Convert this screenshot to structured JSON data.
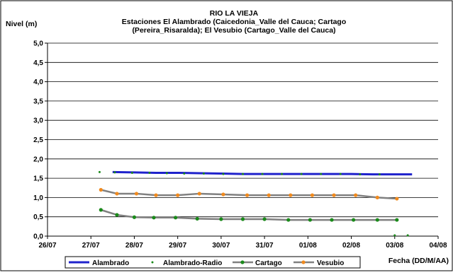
{
  "chart_data": {
    "type": "line",
    "title": [
      "RIO LA VIEJA",
      "Estaciones El Alambrado (Caicedonia_Valle del Cauca; Cartago",
      "(Pereira_Risaralda);  El Vesubio (Cartago_Valle del Cauca)"
    ],
    "ylabel": "Nivel (m)",
    "xlabel": "Fecha (DD/M/AA)",
    "x_ticks": [
      "26/07",
      "27/07",
      "28/07",
      "29/07",
      "30/07",
      "31/07",
      "01/08",
      "02/08",
      "03/08",
      "04/08"
    ],
    "y_ticks": [
      "0,0",
      "0,5",
      "1,0",
      "1,5",
      "2,0",
      "2,5",
      "3,0",
      "3,5",
      "4,0",
      "4,5",
      "5,0"
    ],
    "xlim": [
      0,
      9
    ],
    "ylim": [
      0,
      5
    ],
    "grid": "horizontal",
    "legend_position": "bottom",
    "series": [
      {
        "name": "Alambrado",
        "color": "#1f22cc",
        "style": "thick-line",
        "x": [
          1.5,
          2.0,
          2.5,
          3.0,
          3.5,
          4.0,
          4.5,
          5.0,
          5.5,
          6.0,
          6.5,
          7.0,
          7.5,
          8.0,
          8.4
        ],
        "values": [
          1.66,
          1.65,
          1.64,
          1.64,
          1.63,
          1.62,
          1.61,
          1.61,
          1.61,
          1.61,
          1.61,
          1.61,
          1.6,
          1.6,
          1.6
        ]
      },
      {
        "name": "Alambrado-Radio",
        "color": "#1a8a1a",
        "style": "dots",
        "x": [
          1.2,
          1.55,
          1.95,
          2.35,
          2.75,
          3.15,
          3.6,
          4.05,
          4.5,
          4.95,
          5.4,
          5.85,
          6.3,
          6.75,
          7.2,
          7.65,
          8.0,
          8.3
        ],
        "values": [
          1.66,
          1.65,
          1.64,
          1.64,
          1.63,
          1.62,
          1.62,
          1.61,
          1.61,
          1.61,
          1.61,
          1.61,
          1.61,
          1.61,
          1.6,
          1.6,
          0.02,
          0.02
        ]
      },
      {
        "name": "Cartago",
        "color": "#808080",
        "marker_color": "#1a8a1a",
        "style": "line-markers",
        "x": [
          1.23,
          1.6,
          2.0,
          2.45,
          2.95,
          3.45,
          4.0,
          4.5,
          5.0,
          5.55,
          6.05,
          6.55,
          7.05,
          7.6,
          8.05
        ],
        "values": [
          0.68,
          0.55,
          0.49,
          0.48,
          0.48,
          0.45,
          0.44,
          0.44,
          0.44,
          0.42,
          0.42,
          0.42,
          0.42,
          0.42,
          0.42
        ]
      },
      {
        "name": "Vesubio",
        "color": "#808080",
        "marker_color": "#f08a1e",
        "style": "line-markers",
        "x": [
          1.23,
          1.6,
          2.05,
          2.5,
          3.0,
          3.5,
          4.05,
          4.6,
          5.1,
          5.6,
          6.1,
          6.6,
          7.1,
          7.6,
          8.05
        ],
        "values": [
          1.2,
          1.1,
          1.1,
          1.06,
          1.06,
          1.1,
          1.08,
          1.06,
          1.06,
          1.06,
          1.06,
          1.06,
          1.06,
          1.0,
          0.97
        ]
      }
    ]
  }
}
